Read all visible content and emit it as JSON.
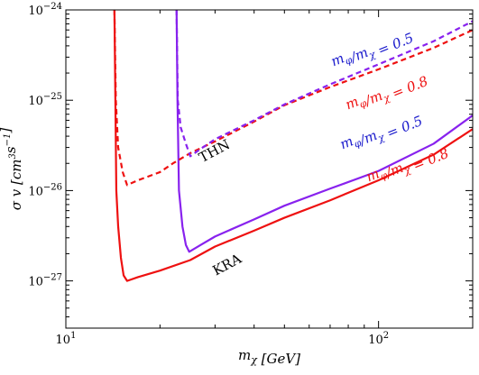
{
  "chart_data": {
    "type": "line",
    "xscale": "log",
    "yscale": "log",
    "xlim": [
      10,
      200
    ],
    "ylim": [
      3e-28,
      1e-24
    ],
    "xlabel": "m_χ [GeV]",
    "ylabel": "σ v [cm³s⁻¹]",
    "x_ticks": [
      {
        "value": 10,
        "mantissa": "10",
        "exp": "1"
      },
      {
        "value": 100,
        "mantissa": "10",
        "exp": "2"
      }
    ],
    "y_ticks": [
      {
        "value": 1e-27,
        "mantissa": "10",
        "exp": "−27"
      },
      {
        "value": 1e-26,
        "mantissa": "10",
        "exp": "−26"
      },
      {
        "value": 1e-25,
        "mantissa": "10",
        "exp": "−25"
      },
      {
        "value": 1e-24,
        "mantissa": "10",
        "exp": "−24"
      }
    ],
    "colors": {
      "red": "#ee1111",
      "purple": "#8822ee",
      "blue_text": "#1a1acc"
    },
    "series": [
      {
        "group": "KRA",
        "ratio": "m_φ/m_χ = 0.8",
        "style": "solid",
        "color": "#ee1111",
        "points": [
          [
            14.3,
            1e-24
          ],
          [
            14.4,
            1e-25
          ],
          [
            14.5,
            1e-26
          ],
          [
            14.7,
            4e-27
          ],
          [
            15.0,
            1.8e-27
          ],
          [
            15.3,
            1.15e-27
          ],
          [
            15.7,
            1e-27
          ],
          [
            17,
            1.1e-27
          ],
          [
            20,
            1.3e-27
          ],
          [
            25,
            1.7e-27
          ],
          [
            30,
            2.4e-27
          ],
          [
            40,
            3.6e-27
          ],
          [
            50,
            5e-27
          ],
          [
            70,
            7.8e-27
          ],
          [
            100,
            1.3e-26
          ],
          [
            150,
            2.5e-26
          ],
          [
            200,
            4.8e-26
          ]
        ]
      },
      {
        "group": "KRA",
        "ratio": "m_φ/m_χ = 0.5",
        "style": "solid",
        "color": "#8822ee",
        "points": [
          [
            22.6,
            1e-24
          ],
          [
            22.75,
            1e-25
          ],
          [
            23,
            1e-26
          ],
          [
            23.6,
            4e-27
          ],
          [
            24.2,
            2.5e-27
          ],
          [
            24.8,
            2.1e-27
          ],
          [
            27,
            2.5e-27
          ],
          [
            30,
            3.1e-27
          ],
          [
            40,
            4.8e-27
          ],
          [
            50,
            6.8e-27
          ],
          [
            70,
            1.05e-26
          ],
          [
            100,
            1.65e-26
          ],
          [
            150,
            3.3e-26
          ],
          [
            200,
            6.8e-26
          ]
        ]
      },
      {
        "group": "THN",
        "ratio": "m_φ/m_χ = 0.8",
        "style": "dashed",
        "color": "#ee1111",
        "points": [
          [
            14.3,
            1e-24
          ],
          [
            14.45,
            1e-25
          ],
          [
            14.7,
            3e-26
          ],
          [
            15.2,
            1.6e-26
          ],
          [
            15.7,
            1.15e-26
          ],
          [
            17,
            1.3e-26
          ],
          [
            20,
            1.6e-26
          ],
          [
            22,
            2e-26
          ],
          [
            25,
            2.6e-26
          ],
          [
            30,
            3.5e-26
          ],
          [
            40,
            5.8e-26
          ],
          [
            50,
            8.8e-26
          ],
          [
            70,
            1.4e-25
          ],
          [
            100,
            2.2e-25
          ],
          [
            150,
            3.8e-25
          ],
          [
            200,
            6e-25
          ]
        ]
      },
      {
        "group": "THN",
        "ratio": "m_φ/m_χ = 0.5",
        "style": "dashed",
        "color": "#8822ee",
        "points": [
          [
            22.6,
            1e-24
          ],
          [
            22.8,
            1e-25
          ],
          [
            23.3,
            5e-26
          ],
          [
            24.2,
            3.3e-26
          ],
          [
            25,
            2.4e-26
          ],
          [
            27,
            2.9e-26
          ],
          [
            30,
            3.7e-26
          ],
          [
            40,
            6e-26
          ],
          [
            50,
            9e-26
          ],
          [
            70,
            1.5e-25
          ],
          [
            100,
            2.5e-25
          ],
          [
            150,
            4.5e-25
          ],
          [
            200,
            7.5e-25
          ]
        ]
      }
    ],
    "annotations": [
      {
        "text": "THN",
        "color": "#000000"
      },
      {
        "text": "KRA",
        "color": "#000000"
      },
      {
        "text": "m_φ/m_χ = 0.5",
        "color": "#1a1acc",
        "group": "THN"
      },
      {
        "text": "m_φ/m_χ = 0.8",
        "color": "#ee1111",
        "group": "THN"
      },
      {
        "text": "m_φ/m_χ = 0.5",
        "color": "#1a1acc",
        "group": "KRA"
      },
      {
        "text": "m_φ/m_χ = 0.8",
        "color": "#ee1111",
        "group": "KRA"
      }
    ]
  }
}
